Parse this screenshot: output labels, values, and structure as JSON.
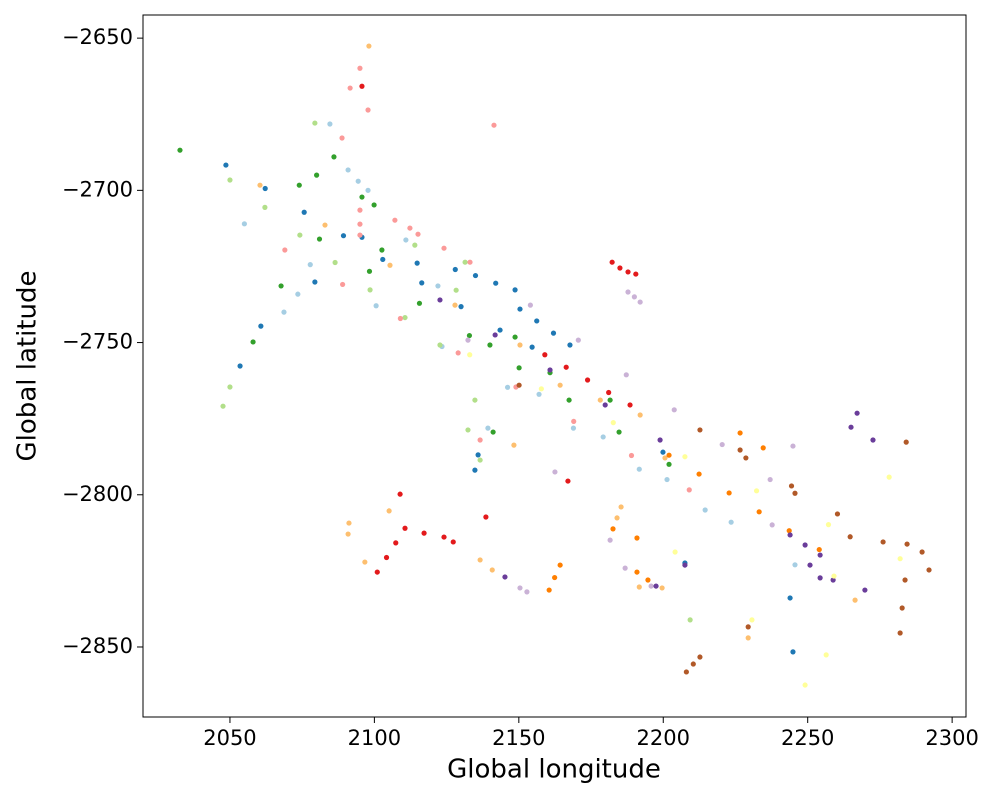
{
  "chart_data": {
    "type": "scatter",
    "xlabel": "Global longitude",
    "ylabel": "Global latitude",
    "xlim": [
      2019.9,
      2304.8
    ],
    "ylim": [
      -2873,
      -2642.4
    ],
    "xticks": [
      2050,
      2100,
      2150,
      2200,
      2250,
      2300
    ],
    "yticks": [
      {
        "value": -2650,
        "label": "−2650"
      },
      {
        "value": -2700,
        "label": "−2700"
      },
      {
        "value": -2750,
        "label": "−2750"
      },
      {
        "value": -2800,
        "label": "−2800"
      },
      {
        "value": -2850,
        "label": "−2850"
      }
    ],
    "series": [
      {
        "color": "#a6cee3",
        "x": [
          2055,
          2077.8,
          2100.6,
          2123.4,
          2146.1,
          2168.9,
          2191.7,
          2214.5,
          2157,
          2179.2,
          2201.3,
          2223.5,
          2245.6,
          2090.9,
          2094.4,
          2097.8,
          2084.6,
          2073.5,
          2068.7,
          2110.9,
          2122,
          2139.3
        ],
        "y": [
          -2711,
          -2724.4,
          -2737.9,
          -2751.3,
          -2764.7,
          -2778.1,
          -2791.6,
          -2805,
          -2767,
          -2781,
          -2795,
          -2809,
          -2823,
          -2693.3,
          -2697,
          -2700,
          -2678.2,
          -2734.1,
          -2740,
          -2716.3,
          -2731.4,
          -2778.1
        ]
      },
      {
        "color": "#1f78b4",
        "x": [
          2048.6,
          2062.2,
          2075.7,
          2089.3,
          2102.9,
          2116.4,
          2130,
          2143.5,
          2128,
          2135,
          2142,
          2148.7,
          2150.4,
          2156.2,
          2162,
          2167.7,
          2135.9,
          2134.8,
          2053.5,
          2060.7,
          2079.4,
          2095.7,
          2114.8,
          2154.6,
          2207.5,
          2243.9,
          2244.9,
          2199.9
        ],
        "y": [
          -2691.7,
          -2699.4,
          -2707.2,
          -2714.9,
          -2722.7,
          -2730.4,
          -2738.2,
          -2745.9,
          -2726,
          -2728,
          -2730.5,
          -2732.7,
          -2739,
          -2742.9,
          -2746.9,
          -2750.8,
          -2786.9,
          -2791.9,
          -2757.7,
          -2744.6,
          -2730.1,
          -2715.4,
          -2723.9,
          -2751.5,
          -2822.4,
          -2833.9,
          -2851.6,
          -2786
        ]
      },
      {
        "color": "#b2df8a",
        "x": [
          2050,
          2062.1,
          2074.2,
          2086.4,
          2098.5,
          2110.6,
          2122.7,
          2114,
          2131.4,
          2134.8,
          2132.4,
          2136.6,
          2047.6,
          2050,
          2079.4,
          2128.3,
          2209.3
        ],
        "y": [
          -2696.6,
          -2705.6,
          -2714.7,
          -2723.7,
          -2732.7,
          -2741.8,
          -2750.8,
          -2718,
          -2723.6,
          -2768.9,
          -2778.7,
          -2788.6,
          -2770.9,
          -2764.6,
          -2677.9,
          -2732.8,
          -2841.1
        ]
      },
      {
        "color": "#33a02c",
        "x": [
          2081,
          2098.3,
          2115.6,
          2132.9,
          2150.1,
          2167.4,
          2184.7,
          2202,
          2140,
          2160.8,
          2181.6,
          2074,
          2080,
          2086,
          2032.7,
          2058,
          2067.7,
          2095.7,
          2099.9,
          2102.6,
          2148.7,
          2141.1
        ],
        "y": [
          -2716,
          -2726.6,
          -2737.1,
          -2747.7,
          -2758.3,
          -2768.9,
          -2779.4,
          -2790,
          -2750.8,
          -2759.9,
          -2768.9,
          -2698.3,
          -2695,
          -2689,
          -2686.8,
          -2749.8,
          -2731.4,
          -2702.2,
          -2704.8,
          -2719.6,
          -2748.2,
          -2779.4
        ]
      },
      {
        "color": "#fb9a99",
        "x": [
          2069,
          2089,
          2109,
          2129,
          2149,
          2169,
          2189,
          2209,
          2107.1,
          2112.3,
          2115.1,
          2124.1,
          2133.1,
          2095,
          2091.6,
          2097.8,
          2141.4,
          2088.8,
          2095,
          2095,
          2095,
          2136.6
        ],
        "y": [
          -2719.6,
          -2730.9,
          -2742.1,
          -2753.4,
          -2764.6,
          -2775.9,
          -2787.1,
          -2798.4,
          -2709.8,
          -2712.4,
          -2714.4,
          -2719,
          -2723.6,
          -2659.9,
          -2666.4,
          -2673.6,
          -2678.6,
          -2682.8,
          -2706.5,
          -2711.1,
          -2714.7,
          -2782
        ]
      },
      {
        "color": "#e31a1c",
        "x": [
          2159,
          2166.4,
          2173.8,
          2181.1,
          2188.5,
          2101,
          2104.2,
          2107.4,
          2110.6,
          2095.7,
          2182.3,
          2185,
          2187.8,
          2190.5,
          2108.9,
          2117.2,
          2124.1,
          2127.3,
          2138.6,
          2167
        ],
        "y": [
          -2754,
          -2758.1,
          -2762.3,
          -2766.4,
          -2770.5,
          -2825.4,
          -2820.6,
          -2815.8,
          -2811,
          -2665.8,
          -2723.6,
          -2725.5,
          -2726.8,
          -2727.5,
          -2799.8,
          -2812.6,
          -2813.9,
          -2815.5,
          -2807.3,
          -2795.5
        ]
      },
      {
        "color": "#fdbf6f",
        "x": [
          2060.4,
          2082.9,
          2105.4,
          2127.9,
          2150.4,
          2164.3,
          2178.2,
          2192,
          2098.1,
          2091.2,
          2090.9,
          2096.7,
          2105.1,
          2136.6,
          2140.8,
          2148.3,
          2185.4,
          2184,
          2191.7,
          2199.6,
          2200.6,
          2266.4,
          2229.4
        ],
        "y": [
          -2698.3,
          -2711.4,
          -2724.6,
          -2737.7,
          -2750.8,
          -2764,
          -2768.9,
          -2773.8,
          -2652.6,
          -2809.3,
          -2812.9,
          -2822.1,
          -2805.3,
          -2821.4,
          -2824.7,
          -2783.7,
          -2804,
          -2807.6,
          -2830.3,
          -2830.6,
          -2787.9,
          -2834.6,
          -2847
        ]
      },
      {
        "color": "#ff7f00",
        "x": [
          2202,
          2212.4,
          2222.8,
          2233.2,
          2243.6,
          2254,
          2160.5,
          2162.4,
          2164.3,
          2226.6,
          2234.6,
          2190.9,
          2190.9,
          2194.7,
          2182.6
        ],
        "y": [
          -2787,
          -2793.2,
          -2799.4,
          -2805.6,
          -2811.8,
          -2818,
          -2831.3,
          -2827.2,
          -2823.1,
          -2779.7,
          -2784.6,
          -2814.2,
          -2825.4,
          -2828,
          -2811.2
        ]
      },
      {
        "color": "#cab2d6",
        "x": [
          2154,
          2170.6,
          2187.2,
          2203.8,
          2220.4,
          2237,
          2187.8,
          2190,
          2192,
          2162.5,
          2181.6,
          2186.8,
          2150.4,
          2152.8,
          2244.9,
          2237.7,
          2195.8,
          2132.4
        ],
        "y": [
          -2737.7,
          -2749.2,
          -2760.6,
          -2772.1,
          -2783.5,
          -2795,
          -2733.4,
          -2735,
          -2736.7,
          -2792.5,
          -2814.9,
          -2824.1,
          -2830.6,
          -2831.9,
          -2784,
          -2809.9,
          -2830,
          -2749.2
        ]
      },
      {
        "color": "#6a3d9a",
        "x": [
          2122.7,
          2141.8,
          2160.8,
          2179.9,
          2198.9,
          2243.9,
          2249.1,
          2254.3,
          2250.8,
          2254.3,
          2267.1,
          2265,
          2272.6,
          2269.8,
          2258.8,
          2207.5,
          2197.5,
          2145.2
        ],
        "y": [
          -2736,
          -2747.5,
          -2759,
          -2770.5,
          -2782,
          -2813.2,
          -2816.5,
          -2819.8,
          -2823.1,
          -2827.3,
          -2773.2,
          -2777.8,
          -2782,
          -2831.3,
          -2828,
          -2823.1,
          -2830,
          -2827
        ]
      },
      {
        "color": "#ffff99",
        "x": [
          2133,
          2157.8,
          2182.7,
          2207.5,
          2232.3,
          2257.2,
          2282,
          2278.2,
          2204.1,
          2230.7,
          2249.1,
          2256.4,
          2259.1
        ],
        "y": [
          -2754,
          -2765.2,
          -2776.3,
          -2787.5,
          -2798.7,
          -2809.8,
          -2821,
          -2794.2,
          -2818.8,
          -2841.1,
          -2862.5,
          -2852.6,
          -2826.7
        ]
      },
      {
        "color": "#b15928",
        "x": [
          2212.7,
          2228.6,
          2244.4,
          2260.3,
          2276.1,
          2292,
          2226.6,
          2245.6,
          2264.7,
          2283.7,
          2208,
          2210.4,
          2212.7,
          2284.1,
          2282.7,
          2282,
          2284.4,
          2289.6,
          2150.1,
          2229.4
        ],
        "y": [
          -2778.7,
          -2787.9,
          -2797.1,
          -2806.3,
          -2815.5,
          -2824.7,
          -2785.3,
          -2799.5,
          -2813.8,
          -2828,
          -2858.2,
          -2855.6,
          -2853.3,
          -2782.7,
          -2837.2,
          -2845.4,
          -2816.2,
          -2818.8,
          -2764,
          -2843.4
        ]
      }
    ]
  }
}
